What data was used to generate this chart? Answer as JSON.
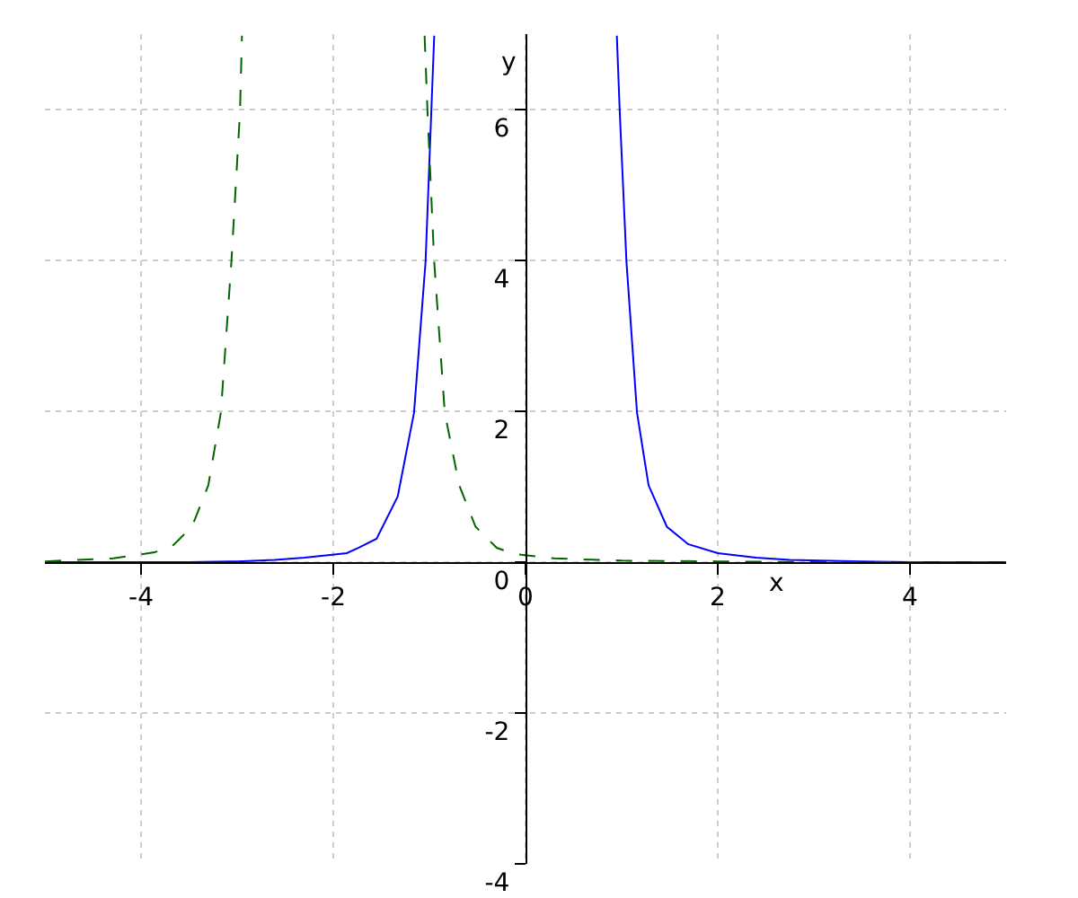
{
  "chart_data": {
    "type": "line",
    "xlabel": "x",
    "ylabel": "y",
    "xlim": [
      -5,
      5
    ],
    "ylim": [
      -4,
      7
    ],
    "xticks": [
      -4,
      -2,
      0,
      2,
      4
    ],
    "yticks": [
      -4,
      -2,
      0,
      2,
      4,
      6
    ],
    "grid": true,
    "marker": "none",
    "series": [
      {
        "color": "#0000ff",
        "line_style": "solid",
        "x": [
          -5,
          -4,
          -3.5,
          -3,
          -2.61,
          -2.3,
          -1.99,
          -1.86,
          -1.74,
          -1.55,
          -1.33,
          -1.16,
          -1.04,
          -0.98,
          -0.95,
          0,
          0.95,
          0.98,
          1.05,
          1.16,
          1.28,
          1.47,
          1.69,
          2.0,
          2.4,
          2.75,
          3.5,
          4,
          5
        ],
        "values": [
          0,
          0,
          0,
          0.01,
          0.03,
          0.06,
          0.1,
          0.12,
          0.19,
          0.31,
          0.87,
          1.98,
          3.98,
          5.98,
          6.98,
          null,
          6.98,
          5.98,
          3.98,
          1.98,
          1.02,
          0.47,
          0.24,
          0.12,
          0.06,
          0.03,
          0.01,
          0,
          0
        ]
      },
      {
        "color": "#006400",
        "line_style": "dashed",
        "x": [
          -5,
          -4.29,
          -3.86,
          -3.66,
          -3.47,
          -3.3,
          -3.17,
          -3.06,
          -2.97,
          -2.95,
          -2,
          -1.05,
          -1.02,
          -0.95,
          -0.84,
          -0.69,
          -0.52,
          -0.3,
          -0.12,
          0.3,
          1,
          2,
          3,
          5
        ],
        "values": [
          0.01,
          0.05,
          0.13,
          0.23,
          0.47,
          1.02,
          1.98,
          3.98,
          5.98,
          6.98,
          null,
          6.98,
          5.98,
          3.98,
          1.98,
          1.02,
          0.47,
          0.19,
          0.11,
          0.05,
          0.02,
          0.01,
          0,
          0
        ]
      }
    ]
  }
}
